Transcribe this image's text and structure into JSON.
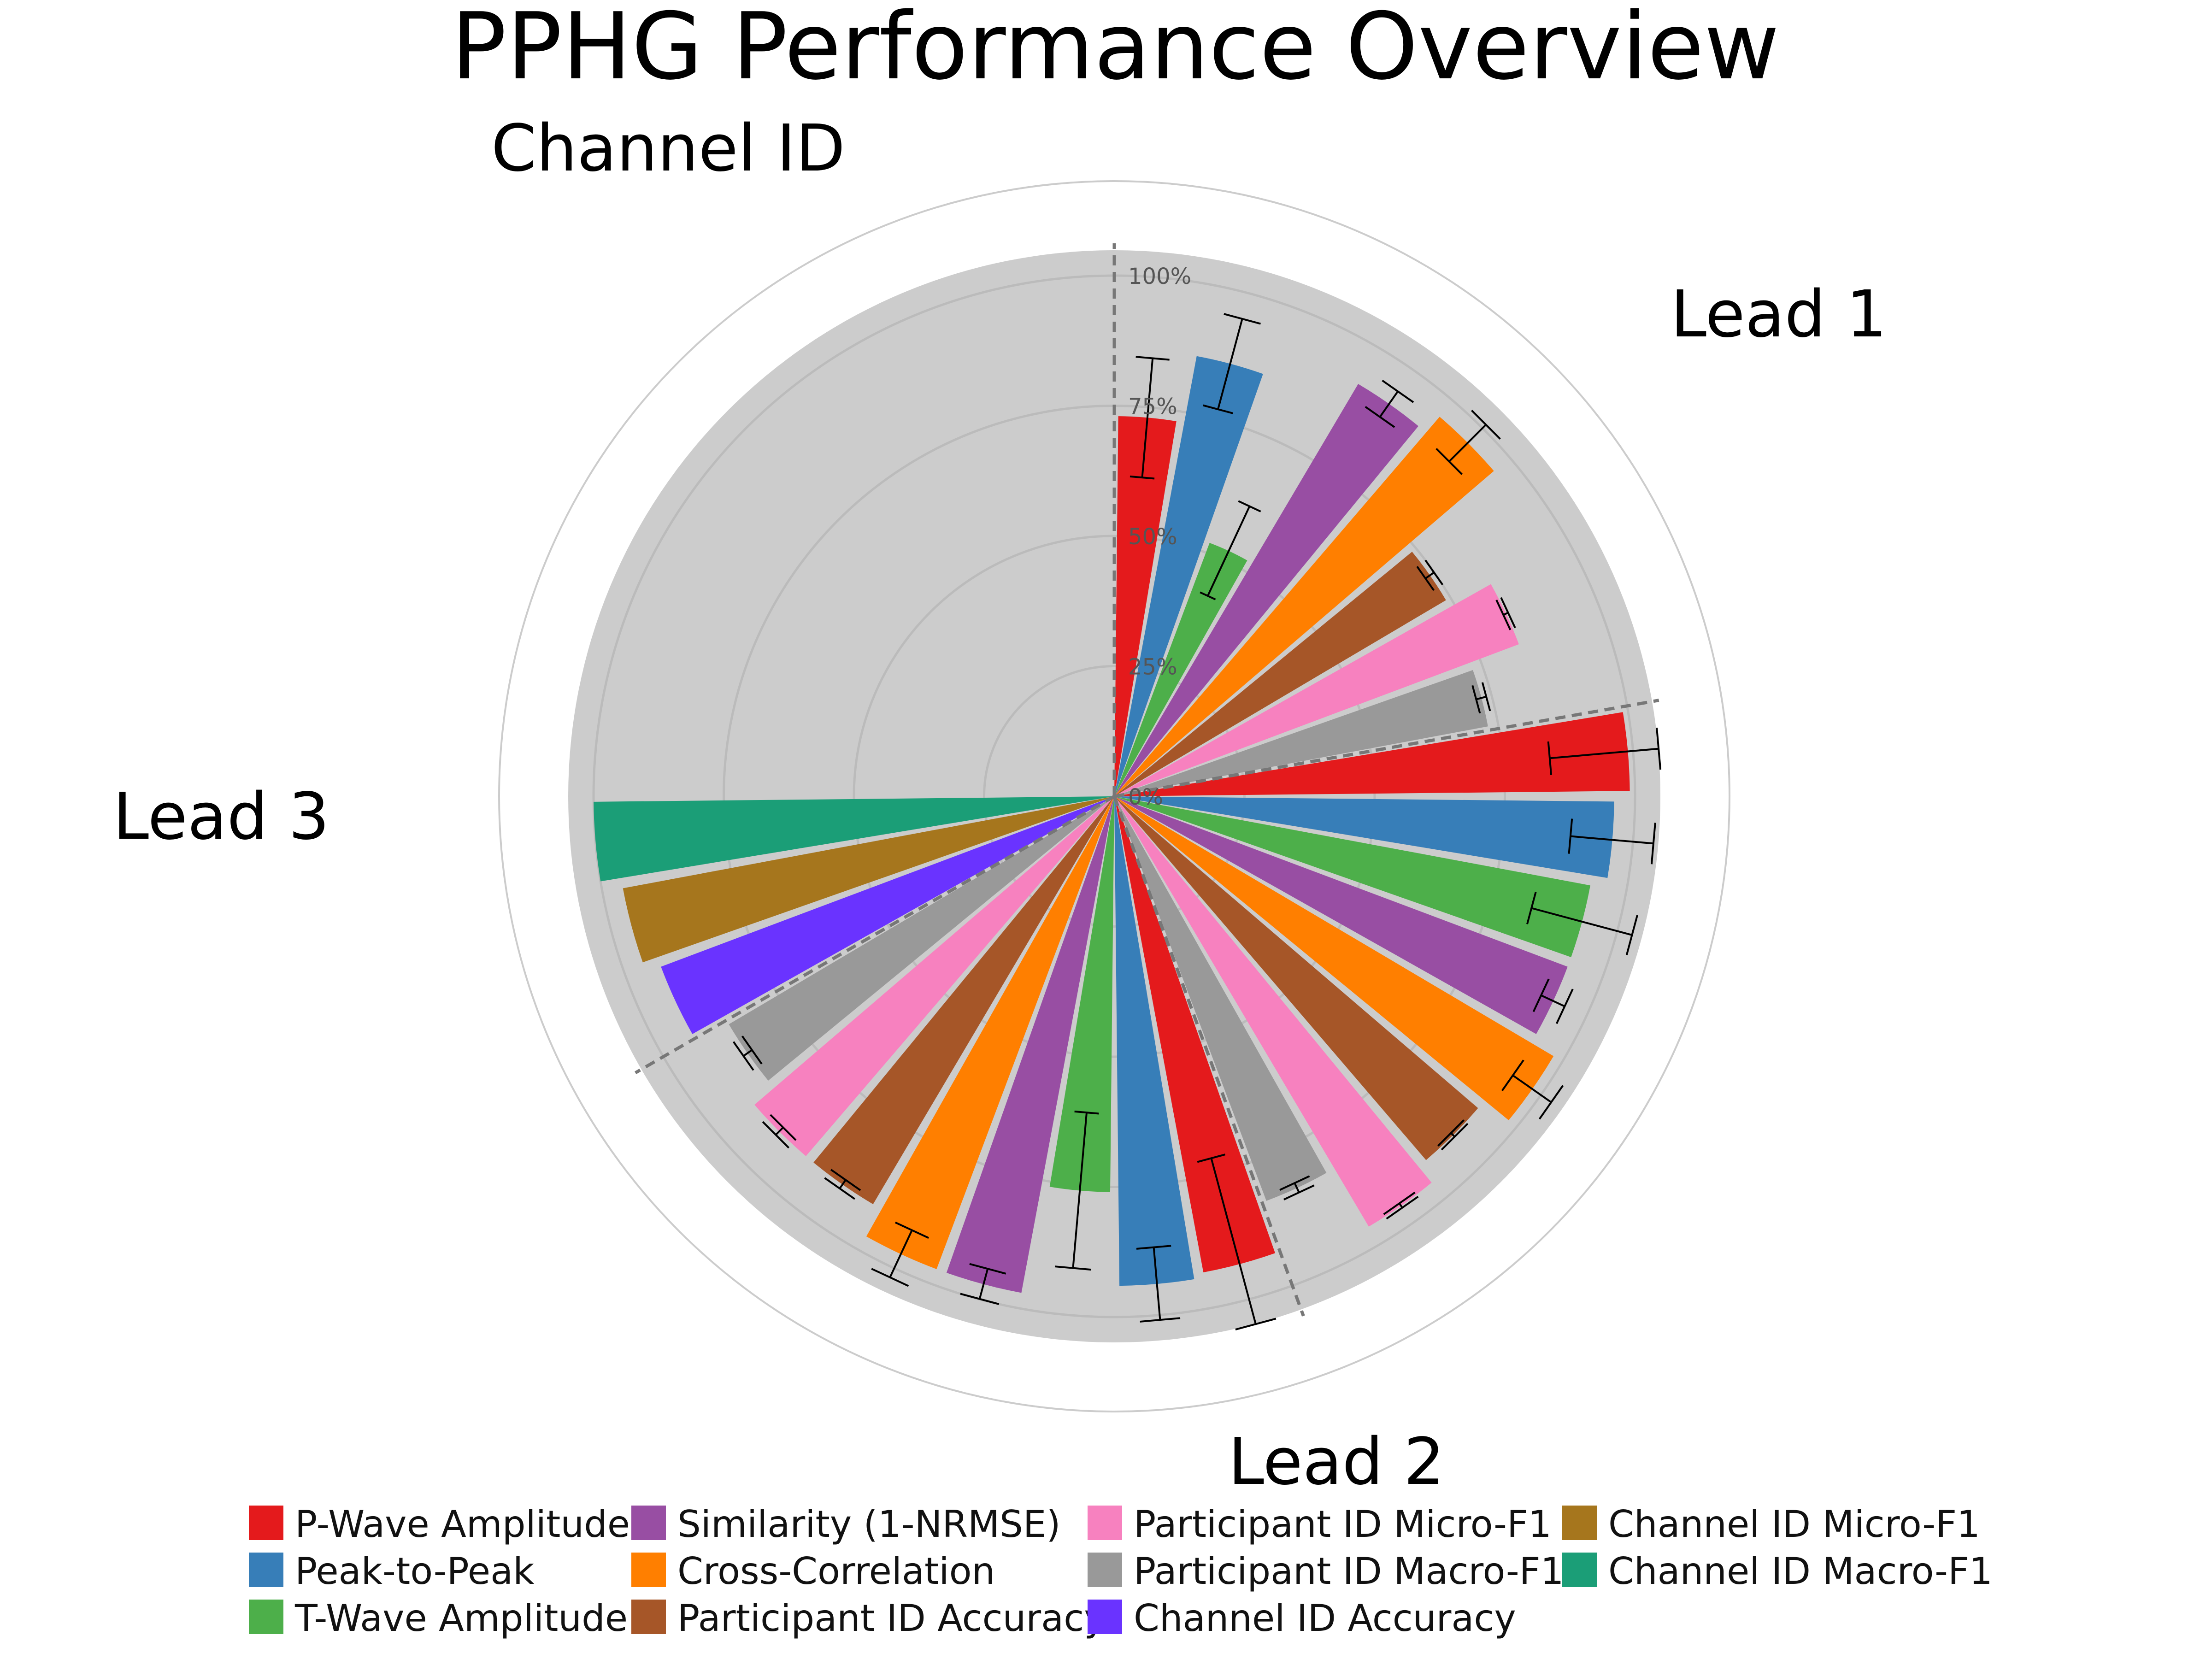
{
  "chart_data": {
    "type": "polar-bar",
    "title": "PPHG Performance Overview",
    "radial_axis": {
      "range": [
        0,
        100
      ],
      "tick_labels": [
        "0%",
        "25%",
        "50%",
        "75%",
        "100%"
      ],
      "tick_values": [
        0,
        25,
        50,
        75,
        100
      ]
    },
    "grid": true,
    "legend_position": "bottom",
    "groups": [
      {
        "label": "Lead 1",
        "bars": [
          {
            "metric": "P-Wave Amplitude",
            "value": 73,
            "error": 11.5
          },
          {
            "metric": "Peak-to-Peak",
            "value": 86,
            "error": 9
          },
          {
            "metric": "T-Wave Amplitude",
            "value": 52,
            "error": 9.5
          },
          {
            "metric": "Similarity (1-NRMSE)",
            "value": 92,
            "error": 3
          },
          {
            "metric": "Cross-Correlation",
            "value": 96,
            "error": 5
          },
          {
            "metric": "Participant ID Accuracy",
            "value": 74,
            "error": 1
          },
          {
            "metric": "Participant ID Micro-F1",
            "value": 83,
            "error": 0.5
          },
          {
            "metric": "Participant ID Macro-F1",
            "value": 73,
            "error": 1
          }
        ]
      },
      {
        "label": "Lead 2",
        "bars": [
          {
            "metric": "P-Wave Amplitude",
            "value": 99,
            "error": 15
          },
          {
            "metric": "Peak-to-Peak",
            "value": 96,
            "error": 8
          },
          {
            "metric": "T-Wave Amplitude",
            "value": 93,
            "error": 10
          },
          {
            "metric": "Similarity (1-NRMSE)",
            "value": 93,
            "error": 2.5
          },
          {
            "metric": "Cross-Correlation",
            "value": 98,
            "error": 4.5
          },
          {
            "metric": "Participant ID Accuracy",
            "value": 92,
            "error": 0.5
          },
          {
            "metric": "Participant ID Micro-F1",
            "value": 96,
            "error": 0.5
          },
          {
            "metric": "Participant ID Macro-F1",
            "value": 83,
            "error": 1
          }
        ]
      },
      {
        "label": "Lead 3",
        "bars": [
          {
            "metric": "P-Wave Amplitude",
            "value": 93,
            "error": 21
          },
          {
            "metric": "Peak-to-Peak",
            "value": 94,
            "error": 7
          },
          {
            "metric": "T-Wave Amplitude",
            "value": 76,
            "error": 15
          },
          {
            "metric": "Similarity (1-NRMSE)",
            "value": 97,
            "error": 3
          },
          {
            "metric": "Cross-Correlation",
            "value": 97,
            "error": 5
          },
          {
            "metric": "Participant ID Accuracy",
            "value": 91,
            "error": 1
          },
          {
            "metric": "Participant ID Micro-F1",
            "value": 91,
            "error": 1
          },
          {
            "metric": "Participant ID Macro-F1",
            "value": 86,
            "error": 1
          }
        ]
      },
      {
        "label": "Channel ID",
        "bars": [
          {
            "metric": "Channel ID Accuracy",
            "value": 93
          },
          {
            "metric": "Channel ID Micro-F1",
            "value": 96
          },
          {
            "metric": "Channel ID Macro-F1",
            "value": 100
          }
        ]
      }
    ],
    "legend": [
      {
        "name": "P-Wave Amplitude",
        "color": "#e41a1c"
      },
      {
        "name": "Peak-to-Peak",
        "color": "#377eb8"
      },
      {
        "name": "T-Wave Amplitude",
        "color": "#4daf4a"
      },
      {
        "name": "Similarity (1-NRMSE)",
        "color": "#984ea3"
      },
      {
        "name": "Cross-Correlation",
        "color": "#ff7f00"
      },
      {
        "name": "Participant ID Accuracy",
        "color": "#a65628"
      },
      {
        "name": "Participant ID Micro-F1",
        "color": "#f781bf"
      },
      {
        "name": "Participant ID Macro-F1",
        "color": "#999999"
      },
      {
        "name": "Channel ID Accuracy",
        "color": "#6a33ff"
      },
      {
        "name": "Channel ID Micro-F1",
        "color": "#a6761d"
      },
      {
        "name": "Channel ID Macro-F1",
        "color": "#1b9e77"
      }
    ]
  }
}
